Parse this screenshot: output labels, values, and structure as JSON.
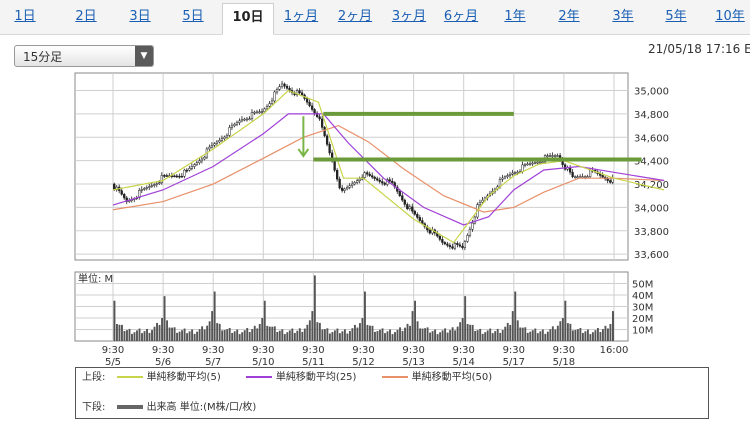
{
  "tabs": [
    "1日",
    "2日",
    "3日",
    "5日",
    "10日",
    "1ヶ月",
    "2ヶ月",
    "3ヶ月",
    "6ヶ月",
    "1年",
    "2年",
    "3年",
    "5年",
    "10年"
  ],
  "active_tab": "10日",
  "interval_select": {
    "value": "15分足"
  },
  "timestamp": "21/05/18 17:16 E",
  "colors": {
    "sma5": "#c8d44a",
    "sma25": "#a040d8",
    "sma50": "#e8906a",
    "candle": "#222222",
    "annotation": "#6a9a3a",
    "arrow": "#7ab548",
    "volume": "#555555"
  },
  "chart_data": {
    "type": "candlestick",
    "price_axis": {
      "min": 33550,
      "max": 35150,
      "ticks": [
        "33,600",
        "33,800",
        "34,000",
        "34,200",
        "34,400",
        "34,600",
        "34,800",
        "35,000"
      ]
    },
    "volume_axis": {
      "unit_label": "単位: M",
      "min": 0,
      "max": 60,
      "ticks": [
        "10M",
        "20M",
        "30M",
        "40M",
        "50M"
      ]
    },
    "x_labels": [
      {
        "time": "9:30",
        "date": "5/5"
      },
      {
        "time": "9:30",
        "date": "5/6"
      },
      {
        "time": "9:30",
        "date": "5/7"
      },
      {
        "time": "9:30",
        "date": "5/10"
      },
      {
        "time": "9:30",
        "date": "5/11"
      },
      {
        "time": "9:30",
        "date": "5/12"
      },
      {
        "time": "9:30",
        "date": "5/13"
      },
      {
        "time": "9:30",
        "date": "5/14"
      },
      {
        "time": "9:30",
        "date": "5/17"
      },
      {
        "time": "9:30",
        "date": "5/18"
      },
      {
        "time": "16:00",
        "date": ""
      }
    ],
    "price_path": [
      [
        0,
        34200
      ],
      [
        0.3,
        34050
      ],
      [
        1,
        34250
      ],
      [
        1.5,
        34300
      ],
      [
        2,
        34520
      ],
      [
        2.6,
        34760
      ],
      [
        3,
        34820
      ],
      [
        3.4,
        35050
      ],
      [
        3.8,
        34950
      ],
      [
        4.1,
        34800
      ],
      [
        4.4,
        34400
      ],
      [
        4.6,
        34120
      ],
      [
        5,
        34280
      ],
      [
        5.6,
        34200
      ],
      [
        6,
        33950
      ],
      [
        6.6,
        33700
      ],
      [
        7,
        33650
      ],
      [
        7.3,
        34000
      ],
      [
        7.7,
        34200
      ],
      [
        8,
        34300
      ],
      [
        8.5,
        34400
      ],
      [
        8.9,
        34450
      ],
      [
        9.2,
        34250
      ],
      [
        9.6,
        34300
      ],
      [
        10,
        34230
      ],
      [
        10.5,
        34250
      ],
      [
        11,
        34080
      ]
    ],
    "sma5": [
      [
        0,
        34150
      ],
      [
        1,
        34230
      ],
      [
        2,
        34500
      ],
      [
        3,
        34800
      ],
      [
        3.5,
        35000
      ],
      [
        4.1,
        34900
      ],
      [
        4.6,
        34250
      ],
      [
        5,
        34250
      ],
      [
        6,
        33900
      ],
      [
        6.8,
        33700
      ],
      [
        7.5,
        34100
      ],
      [
        8,
        34270
      ],
      [
        8.5,
        34370
      ],
      [
        9,
        34400
      ],
      [
        10,
        34250
      ],
      [
        11,
        34150
      ]
    ],
    "sma25": [
      [
        0,
        34020
      ],
      [
        1,
        34150
      ],
      [
        2,
        34350
      ],
      [
        3,
        34630
      ],
      [
        3.5,
        34800
      ],
      [
        4.2,
        34800
      ],
      [
        4.7,
        34550
      ],
      [
        5.4,
        34250
      ],
      [
        6.2,
        34000
      ],
      [
        7,
        33850
      ],
      [
        7.5,
        33920
      ],
      [
        8,
        34150
      ],
      [
        8.6,
        34320
      ],
      [
        9.3,
        34350
      ],
      [
        10,
        34300
      ],
      [
        11,
        34230
      ]
    ],
    "sma50": [
      [
        0,
        33980
      ],
      [
        1,
        34050
      ],
      [
        2,
        34200
      ],
      [
        3,
        34420
      ],
      [
        3.8,
        34600
      ],
      [
        4.5,
        34700
      ],
      [
        5.1,
        34560
      ],
      [
        5.8,
        34330
      ],
      [
        6.6,
        34100
      ],
      [
        7.4,
        33960
      ],
      [
        8,
        34000
      ],
      [
        8.6,
        34130
      ],
      [
        9.3,
        34250
      ],
      [
        10,
        34250
      ],
      [
        11,
        34230
      ]
    ],
    "annotations": [
      {
        "type": "hline",
        "price": 34800,
        "x_from": 4.2,
        "x_to": 8.0
      },
      {
        "type": "hline",
        "price": 34410,
        "x_from": 4.0,
        "x_to": 10.55
      },
      {
        "type": "arrow-down",
        "x": 3.8,
        "from": 34780,
        "to": 34440
      }
    ]
  },
  "legend": {
    "upper_label": "上段:",
    "items": [
      {
        "name": "単純移動平均(5)",
        "color_key": "sma5"
      },
      {
        "name": "単純移動平均(25)",
        "color_key": "sma25"
      },
      {
        "name": "単純移動平均(50)",
        "color_key": "sma50"
      }
    ],
    "lower_label": "下段:",
    "volume_name": "出来高 単位:(M株/口/枚)"
  }
}
